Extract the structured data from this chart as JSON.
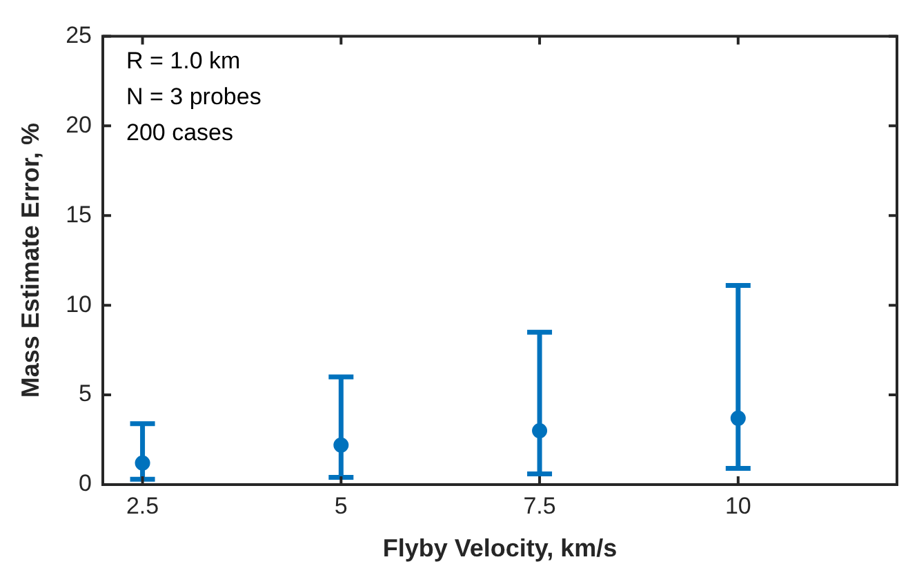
{
  "chart_data": {
    "type": "scatter",
    "xlabel": "Flyby Velocity, km/s",
    "ylabel": "Mass Estimate Error, %",
    "annotations": [
      "R = 1.0 km",
      "N = 3 probes",
      "200 cases"
    ],
    "x": [
      2.5,
      5,
      7.5,
      10
    ],
    "values": [
      1.2,
      2.2,
      3.0,
      3.7
    ],
    "errors": [
      [
        0.3,
        3.4
      ],
      [
        0.4,
        6.0
      ],
      [
        0.6,
        8.5
      ],
      [
        0.9,
        11.1
      ]
    ],
    "color": "#0072bd",
    "marker": "circle",
    "xlim": [
      2,
      12
    ],
    "xticks": [
      2.5,
      5,
      7.5,
      10
    ],
    "ylim": [
      0,
      25
    ],
    "yticks": [
      0,
      5,
      10,
      15,
      20,
      25
    ],
    "grid": false,
    "legend": false
  }
}
